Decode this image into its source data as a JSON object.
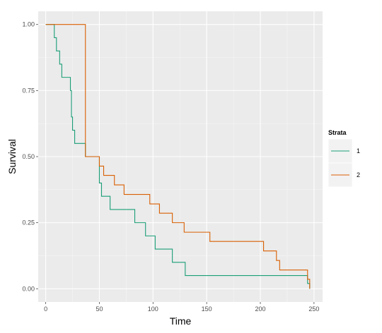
{
  "chart_data": {
    "type": "line",
    "step": true,
    "xlabel": "Time",
    "ylabel": "Survival",
    "xlim": [
      -7,
      258
    ],
    "ylim": [
      -0.05,
      1.05
    ],
    "x_ticks": [
      0,
      50,
      100,
      150,
      200,
      250
    ],
    "x_tick_labels": [
      "0",
      "50",
      "100",
      "150",
      "200",
      "250"
    ],
    "y_ticks": [
      0,
      0.25,
      0.5,
      0.75,
      1
    ],
    "y_tick_labels": [
      "0.00",
      "0.25",
      "0.50",
      "0.75",
      "1.00"
    ],
    "grid": true,
    "legend": {
      "title": "Strata",
      "position": "right"
    },
    "series": [
      {
        "name": "1",
        "color": "#1b9e77",
        "x": [
          0,
          8,
          10,
          13,
          15,
          23,
          24,
          25,
          27,
          37,
          50,
          52,
          60,
          83,
          93,
          102,
          118,
          130,
          243,
          244,
          246
        ],
        "y": [
          1.0,
          0.95,
          0.9,
          0.85,
          0.8,
          0.75,
          0.65,
          0.6,
          0.55,
          0.5,
          0.4,
          0.35,
          0.3,
          0.25,
          0.2,
          0.15,
          0.1,
          0.05,
          0.05,
          0.02,
          0.0
        ]
      },
      {
        "name": "2",
        "color": "#d95f02",
        "x": [
          0,
          37,
          50,
          54,
          64,
          73,
          76,
          97,
          106,
          118,
          129,
          153,
          203,
          215,
          218,
          244,
          246
        ],
        "y": [
          1.0,
          0.5,
          0.464,
          0.429,
          0.393,
          0.357,
          0.357,
          0.321,
          0.286,
          0.25,
          0.214,
          0.179,
          0.143,
          0.107,
          0.071,
          0.036,
          0.0
        ]
      }
    ]
  }
}
